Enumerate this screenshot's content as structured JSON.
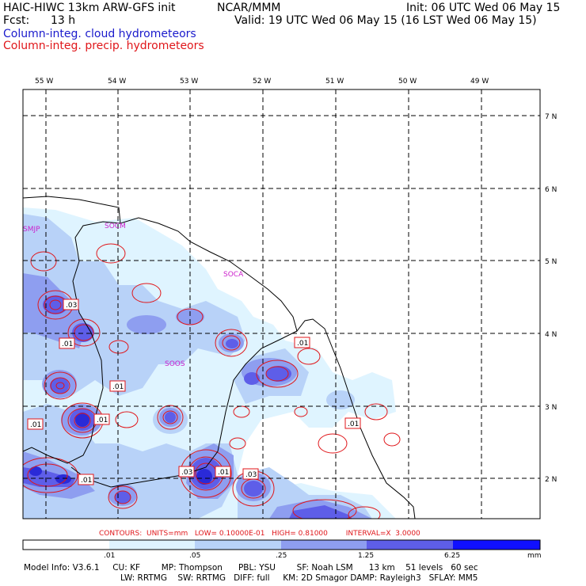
{
  "header": {
    "model_line": "HAIC-HIWC 13km ARW-GFS init",
    "org": "NCAR/MMM",
    "init": "Init: 06 UTC Wed 06 May 15",
    "fcst_label": "Fcst:",
    "fcst_value": "13 h",
    "valid": "Valid: 19 UTC Wed 06 May 15 (16 LST Wed 06 May 15)",
    "field1": "Column-integ. cloud hydrometeors",
    "field2": "Column-integ. precip. hydrometeors"
  },
  "colors": {
    "cloud_field": "#1a1acc",
    "precip_field": "#e0161a",
    "lon_label": "#000000",
    "station": "#cc22cc",
    "fill_1": "#dff4ff",
    "fill_2": "#b8d2f8",
    "fill_3": "#8e9ef0",
    "fill_4": "#5e5ee8",
    "fill_5": "#2a2ad8",
    "fill_6": "#1010ff"
  },
  "map": {
    "lon_labels": [
      "55 W",
      "54 W",
      "53 W",
      "52 W",
      "51 W",
      "50 W",
      "49 W"
    ],
    "lat_labels": [
      "7 N",
      "6 N",
      "5 N",
      "4 N",
      "3 N",
      "2 N"
    ],
    "stations": [
      "SMJP",
      "SOCM",
      "SOCA",
      "SOOS"
    ],
    "contour_values": [
      ".03",
      ".01",
      ".01",
      ".01",
      ".01",
      ".01",
      ".03",
      ".01",
      ".01",
      ".03",
      ".01"
    ]
  },
  "legend": {
    "contours_line": "CONTOURS:  UNITS=mm   LOW= 0.10000E-01   HIGH= 0.81000        INTERVAL=X  3.0000",
    "scale_labels": [
      ".01",
      ".05",
      ".25",
      "1.25",
      "6.25"
    ],
    "units": "mm"
  },
  "footer": {
    "line1": "Model Info: V3.6.1     CU: KF        MP: Thompson      PBL: YSU        SF: Noah LSM      13 km    51 levels   60 sec",
    "line2": "LW: RRTMG    SW: RRTMG   DIFF: full     KM: 2D Smagor DAMP: Rayleigh3   SFLAY: MM5"
  }
}
